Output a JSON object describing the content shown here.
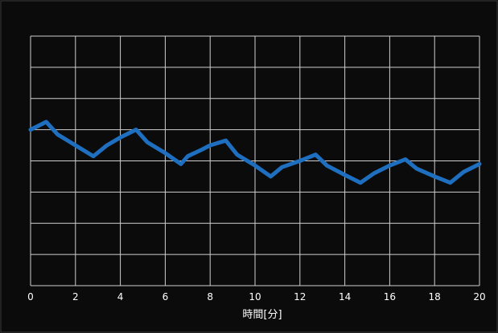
{
  "chart_data": {
    "type": "line",
    "title": "",
    "xlabel": "時間[分]",
    "ylabel": "",
    "xlim": [
      0,
      20
    ],
    "ylim": [
      0,
      8
    ],
    "x_ticks": [
      "0",
      "2",
      "4",
      "6",
      "8",
      "10",
      "12",
      "14",
      "16",
      "18",
      "20"
    ],
    "grid": true,
    "series": [
      {
        "color": "#1f6fc0",
        "x": [
          0,
          0.7,
          1.2,
          2.0,
          2.8,
          3.4,
          4.0,
          4.7,
          5.2,
          6.0,
          6.7,
          7.0,
          7.6,
          8.0,
          8.7,
          9.2,
          10.0,
          10.7,
          11.2,
          12.0,
          12.7,
          13.2,
          14.0,
          14.7,
          15.3,
          16.0,
          16.7,
          17.2,
          18.0,
          18.7,
          19.3,
          20.0
        ],
        "y": [
          5.0,
          5.25,
          4.85,
          4.5,
          4.15,
          4.5,
          4.75,
          5.0,
          4.6,
          4.25,
          3.9,
          4.15,
          4.35,
          4.5,
          4.65,
          4.2,
          3.85,
          3.5,
          3.8,
          4.0,
          4.2,
          3.85,
          3.55,
          3.3,
          3.6,
          3.85,
          4.05,
          3.75,
          3.5,
          3.3,
          3.65,
          3.9
        ]
      }
    ]
  }
}
